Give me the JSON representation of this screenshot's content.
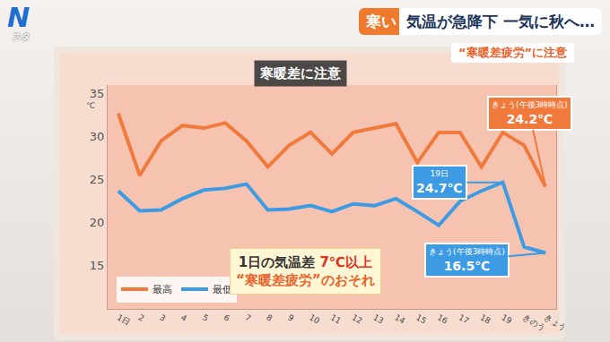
{
  "banner": {
    "logo": "N",
    "logo_sub": "スタ",
    "tag": "寒い",
    "headline": "気温が急降下 一気に秋へ…",
    "subhead": "“寒暖差疲労”に注意"
  },
  "chart_data": {
    "type": "line",
    "title": "寒暖差に注意",
    "categories": [
      "1日",
      "2",
      "3",
      "4",
      "5",
      "6",
      "7",
      "8",
      "9",
      "10",
      "11",
      "12",
      "13",
      "14",
      "15",
      "16",
      "17",
      "18",
      "19",
      "きのう",
      "きょう"
    ],
    "series": [
      {
        "name": "最高",
        "color": "#f07a3c",
        "values": [
          32.7,
          25.5,
          29.5,
          31.3,
          31.0,
          31.6,
          29.5,
          26.5,
          29.0,
          30.5,
          28.0,
          30.5,
          31.0,
          31.5,
          27.0,
          30.5,
          30.5,
          26.5,
          30.5,
          29.0,
          24.2
        ]
      },
      {
        "name": "最低",
        "color": "#3d9be3",
        "values": [
          23.7,
          21.4,
          21.5,
          22.8,
          23.8,
          24.0,
          24.5,
          21.5,
          21.6,
          22.0,
          21.3,
          22.2,
          22.0,
          22.8,
          21.3,
          19.7,
          22.5,
          23.7,
          24.7,
          17.2,
          16.5
        ]
      }
    ],
    "ylim": [
      10,
      36
    ],
    "yticks": [
      15,
      20,
      25,
      30,
      35
    ],
    "y_unit": "℃",
    "grid": false,
    "legend": "lower left",
    "line_style": "solid",
    "point_labels": [
      {
        "series": "最高",
        "category": "きょう",
        "label": "きょう(午後3時時点)",
        "value_label": "24.2℃"
      },
      {
        "series": "最低",
        "category": "19",
        "label": "19日",
        "value_label": "24.7℃"
      },
      {
        "series": "最低",
        "category": "きょう",
        "label": "きょう(午後3時時点)",
        "value_label": "16.5℃"
      }
    ],
    "callout": {
      "line1": "1日の気温差",
      "highlight": "7℃以上",
      "line2": "“寒暖差疲労”のおそれ"
    }
  }
}
